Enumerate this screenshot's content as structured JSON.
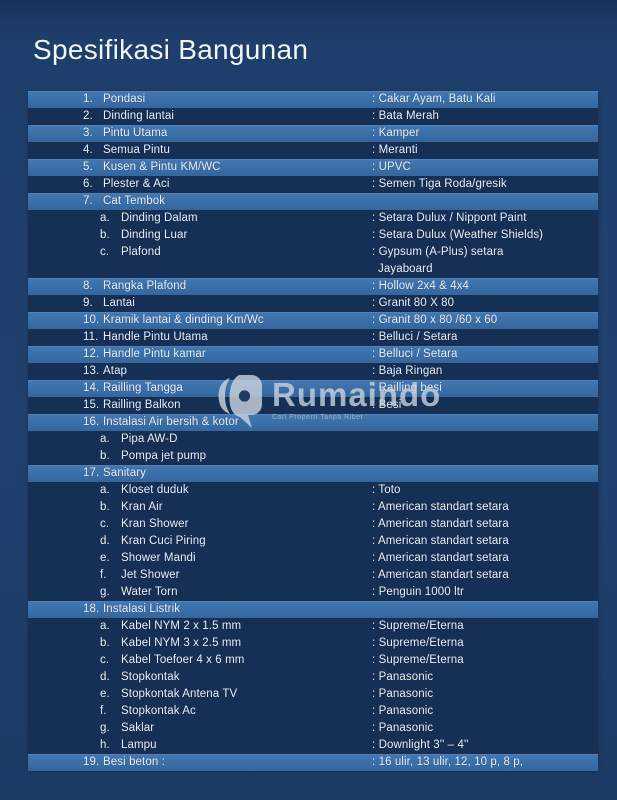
{
  "page": {
    "title": "Spesifikasi Bangunan"
  },
  "colors": {
    "background": "#1e3f6b",
    "table_background": "#152f55",
    "highlight_row": "#3b6fa8",
    "text": "#e9eff7",
    "watermark_text": "#c8d2dd"
  },
  "watermark": {
    "brand": "Rumaindo",
    "tagline": "Cari Properti Tanpa Ribet",
    "logo": "rumaindo-logo"
  },
  "spec_table": {
    "rows": [
      {
        "num": "1.",
        "label": "Pondasi",
        "value": "Cakar Ayam, Batu Kali",
        "indent": 0,
        "highlight": true
      },
      {
        "num": "2.",
        "label": "Dinding lantai",
        "value": "Bata Merah",
        "indent": 0,
        "highlight": false
      },
      {
        "num": "3.",
        "label": "Pintu Utama",
        "value": "Kamper",
        "indent": 0,
        "highlight": true
      },
      {
        "num": "4.",
        "label": "Semua Pintu",
        "value": "Meranti",
        "indent": 0,
        "highlight": false
      },
      {
        "num": "5.",
        "label": "Kusen & Pintu KM/WC",
        "value": "UPVC",
        "indent": 0,
        "highlight": true
      },
      {
        "num": "6.",
        "label": "Plester & Aci",
        "value": "Semen Tiga Roda/gresik",
        "indent": 0,
        "highlight": false
      },
      {
        "num": "7.",
        "label": "Cat Tembok",
        "value": "",
        "indent": 0,
        "highlight": true
      },
      {
        "num": "a.",
        "label": "Dinding Dalam",
        "value": "Setara Dulux / Nippont Paint",
        "indent": 1,
        "highlight": false
      },
      {
        "num": "b.",
        "label": "Dinding Luar",
        "value": "Setara Dulux (Weather Shields)",
        "indent": 1,
        "highlight": false
      },
      {
        "num": "c.",
        "label": "Plafond",
        "value": "Gypsum (A-Plus) setara",
        "indent": 1,
        "highlight": false
      },
      {
        "num": "",
        "label": "",
        "value": "Jayaboard",
        "indent": 2,
        "highlight": false
      },
      {
        "num": "8.",
        "label": "Rangka Plafond",
        "value": "Hollow 2x4 & 4x4",
        "indent": 0,
        "highlight": true
      },
      {
        "num": "9.",
        "label": "Lantai",
        "value": "Granit 80 X 80",
        "indent": 0,
        "highlight": false
      },
      {
        "num": "10.",
        "label": "Kramik lantai & dinding Km/Wc",
        "value": "Granit 80 x 80 /60 x 60",
        "indent": 0,
        "highlight": true
      },
      {
        "num": "11.",
        "label": "Handle Pintu Utama",
        "value": "Belluci / Setara",
        "indent": 0,
        "highlight": false
      },
      {
        "num": "12.",
        "label": "Handle Pintu kamar",
        "value": "Belluci / Setara",
        "indent": 0,
        "highlight": true
      },
      {
        "num": "13.",
        "label": "Atap",
        "value": "Baja Ringan",
        "indent": 0,
        "highlight": false
      },
      {
        "num": "14.",
        "label": "Railling Tangga",
        "value": "Railling besi",
        "indent": 0,
        "highlight": true
      },
      {
        "num": "15.",
        "label": "Railling Balkon",
        "value": "Besi",
        "indent": 0,
        "highlight": false
      },
      {
        "num": "16.",
        "label": "Instalasi Air bersih & kotor",
        "value": "",
        "indent": 0,
        "highlight": true
      },
      {
        "num": "a.",
        "label": "Pipa AW-D",
        "value": "",
        "indent": 1,
        "highlight": false
      },
      {
        "num": "b.",
        "label": "Pompa jet pump",
        "value": "",
        "indent": 1,
        "highlight": false
      },
      {
        "num": "17.",
        "label": "Sanitary",
        "value": "",
        "indent": 0,
        "highlight": true
      },
      {
        "num": "a.",
        "label": "Kloset duduk",
        "value": "Toto",
        "indent": 1,
        "highlight": false
      },
      {
        "num": "b.",
        "label": "Kran Air",
        "value": "American standart setara",
        "indent": 1,
        "highlight": false
      },
      {
        "num": "c.",
        "label": "Kran Shower",
        "value": "American standart setara",
        "indent": 1,
        "highlight": false
      },
      {
        "num": "d.",
        "label": "Kran Cuci Piring",
        "value": "American standart setara",
        "indent": 1,
        "highlight": false
      },
      {
        "num": "e.",
        "label": "Shower Mandi",
        "value": "American standart setara",
        "indent": 1,
        "highlight": false
      },
      {
        "num": "f.",
        "label": "Jet Shower",
        "value": "American standart setara",
        "indent": 1,
        "highlight": false
      },
      {
        "num": "g.",
        "label": "Water Torn",
        "value": "Penguin 1000 ltr",
        "indent": 1,
        "highlight": false
      },
      {
        "num": "18.",
        "label": "Instalasi Listrik",
        "value": "",
        "indent": 0,
        "highlight": true
      },
      {
        "num": "a.",
        "label": "Kabel NYM 2 x 1.5 mm",
        "value": "Supreme/Eterna",
        "indent": 1,
        "highlight": false
      },
      {
        "num": "b.",
        "label": "Kabel NYM 3 x 2.5 mm",
        "value": "Supreme/Eterna",
        "indent": 1,
        "highlight": false
      },
      {
        "num": "c.",
        "label": "Kabel Toefoer 4 x 6 mm",
        "value": "Supreme/Eterna",
        "indent": 1,
        "highlight": false
      },
      {
        "num": "d.",
        "label": "Stopkontak",
        "value": "Panasonic",
        "indent": 1,
        "highlight": false
      },
      {
        "num": "e.",
        "label": "Stopkontak Antena TV",
        "value": "Panasonic",
        "indent": 1,
        "highlight": false
      },
      {
        "num": "f.",
        "label": "Stopkontak Ac",
        "value": "Panasonic",
        "indent": 1,
        "highlight": false
      },
      {
        "num": "g.",
        "label": "Saklar",
        "value": "Panasonic",
        "indent": 1,
        "highlight": false
      },
      {
        "num": "h.",
        "label": "Lampu",
        "value": "Downlight 3'' – 4''",
        "indent": 1,
        "highlight": false
      },
      {
        "num": "19.",
        "label": "Besi beton :",
        "value": "16 ulir, 13 ulir, 12, 10 p, 8 p,",
        "indent": 0,
        "highlight": true
      }
    ]
  }
}
